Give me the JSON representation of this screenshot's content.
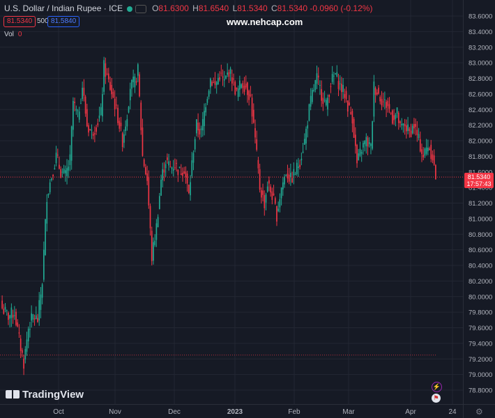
{
  "header": {
    "symbol": "U.S. Dollar / Indian Rupee · ICE",
    "open_label": "O",
    "open": "81.6300",
    "high_label": "H",
    "high": "81.6540",
    "low_label": "L",
    "low": "81.5340",
    "close_label": "C",
    "close": "81.5340",
    "change": "-0.0960 (-0.12%)"
  },
  "trade": {
    "sell": "81.5340",
    "spread": "500",
    "buy": "81.5840"
  },
  "volume": {
    "label": "Vol",
    "value": "0"
  },
  "watermark": "www.nehcap.com",
  "brand": "TradingView",
  "price_tag": {
    "price": "81.5340",
    "countdown": "17:57:43"
  },
  "colors": {
    "up": "#22ab94",
    "down": "#f23645",
    "background": "#161a25",
    "grid": "#232733"
  },
  "icons": [
    "lightning-icon",
    "flag-icon",
    "gear-icon"
  ],
  "chart_data": {
    "type": "candlestick",
    "y_axis_labels": [
      "83.6000",
      "83.4000",
      "83.2000",
      "83.0000",
      "82.8000",
      "82.6000",
      "82.4000",
      "82.2000",
      "82.0000",
      "81.8000",
      "81.6000",
      "81.4000",
      "81.2000",
      "81.0000",
      "80.8000",
      "80.6000",
      "80.4000",
      "80.2000",
      "80.0000",
      "79.8000",
      "79.6000",
      "79.4000",
      "79.2000",
      "79.0000",
      "78.8000"
    ],
    "x_axis_labels": [
      "Oct",
      "Nov",
      "Dec",
      "2023",
      "Feb",
      "Mar",
      "Apr",
      "24"
    ],
    "ylim": [
      78.8,
      83.6
    ],
    "last_price": 81.534,
    "reference_line": 79.25,
    "grid": true,
    "close_path": [
      [
        0,
        79.85
      ],
      [
        4,
        79.75
      ],
      [
        8,
        79.8
      ],
      [
        11,
        79.45
      ],
      [
        14,
        79.15
      ],
      [
        17,
        79.6
      ],
      [
        20,
        79.75
      ],
      [
        23,
        79.7
      ],
      [
        26,
        80.2
      ],
      [
        29,
        81.3
      ],
      [
        32,
        81.55
      ],
      [
        35,
        81.8
      ],
      [
        38,
        81.6
      ],
      [
        41,
        81.55
      ],
      [
        44,
        81.75
      ],
      [
        46,
        82.5
      ],
      [
        49,
        82.3
      ],
      [
        52,
        82.7
      ],
      [
        55,
        82.2
      ],
      [
        58,
        82.1
      ],
      [
        61,
        82.2
      ],
      [
        64,
        82.35
      ],
      [
        66,
        82.95
      ],
      [
        69,
        82.75
      ],
      [
        72,
        82.55
      ],
      [
        75,
        82.3
      ],
      [
        78,
        82.0
      ],
      [
        81,
        82.35
      ],
      [
        83,
        82.7
      ],
      [
        86,
        82.75
      ],
      [
        88,
        82.9
      ],
      [
        91,
        81.8
      ],
      [
        94,
        81.5
      ],
      [
        97,
        80.5
      ],
      [
        100,
        80.9
      ],
      [
        103,
        81.5
      ],
      [
        106,
        81.75
      ],
      [
        109,
        81.65
      ],
      [
        112,
        81.7
      ],
      [
        115,
        81.6
      ],
      [
        118,
        81.65
      ],
      [
        121,
        81.3
      ],
      [
        124,
        81.9
      ],
      [
        126,
        82.2
      ],
      [
        129,
        82.1
      ],
      [
        132,
        82.5
      ],
      [
        135,
        82.8
      ],
      [
        138,
        82.7
      ],
      [
        141,
        82.85
      ],
      [
        144,
        82.75
      ],
      [
        147,
        82.9
      ],
      [
        149,
        82.8
      ],
      [
        152,
        82.6
      ],
      [
        155,
        82.75
      ],
      [
        158,
        82.7
      ],
      [
        161,
        82.55
      ],
      [
        164,
        82.0
      ],
      [
        167,
        81.4
      ],
      [
        170,
        81.2
      ],
      [
        172,
        81.45
      ],
      [
        175,
        81.3
      ],
      [
        178,
        81.05
      ],
      [
        181,
        81.4
      ],
      [
        184,
        81.6
      ],
      [
        187,
        81.5
      ],
      [
        190,
        81.6
      ],
      [
        193,
        81.75
      ],
      [
        196,
        82.0
      ],
      [
        199,
        82.4
      ],
      [
        201,
        82.6
      ],
      [
        204,
        82.8
      ],
      [
        207,
        82.6
      ],
      [
        210,
        82.45
      ],
      [
        213,
        82.75
      ],
      [
        216,
        82.85
      ],
      [
        219,
        82.7
      ],
      [
        222,
        82.6
      ],
      [
        224,
        82.45
      ],
      [
        227,
        82.3
      ],
      [
        230,
        81.7
      ],
      [
        233,
        81.9
      ],
      [
        236,
        82.0
      ],
      [
        239,
        81.9
      ],
      [
        241,
        82.7
      ],
      [
        244,
        82.6
      ],
      [
        247,
        82.5
      ],
      [
        250,
        82.45
      ],
      [
        253,
        82.3
      ],
      [
        256,
        82.35
      ],
      [
        258,
        82.15
      ],
      [
        261,
        82.2
      ],
      [
        264,
        82.1
      ],
      [
        267,
        82.2
      ],
      [
        270,
        82.0
      ],
      [
        273,
        81.8
      ],
      [
        276,
        81.95
      ],
      [
        279,
        81.8
      ],
      [
        281,
        81.534
      ]
    ]
  }
}
